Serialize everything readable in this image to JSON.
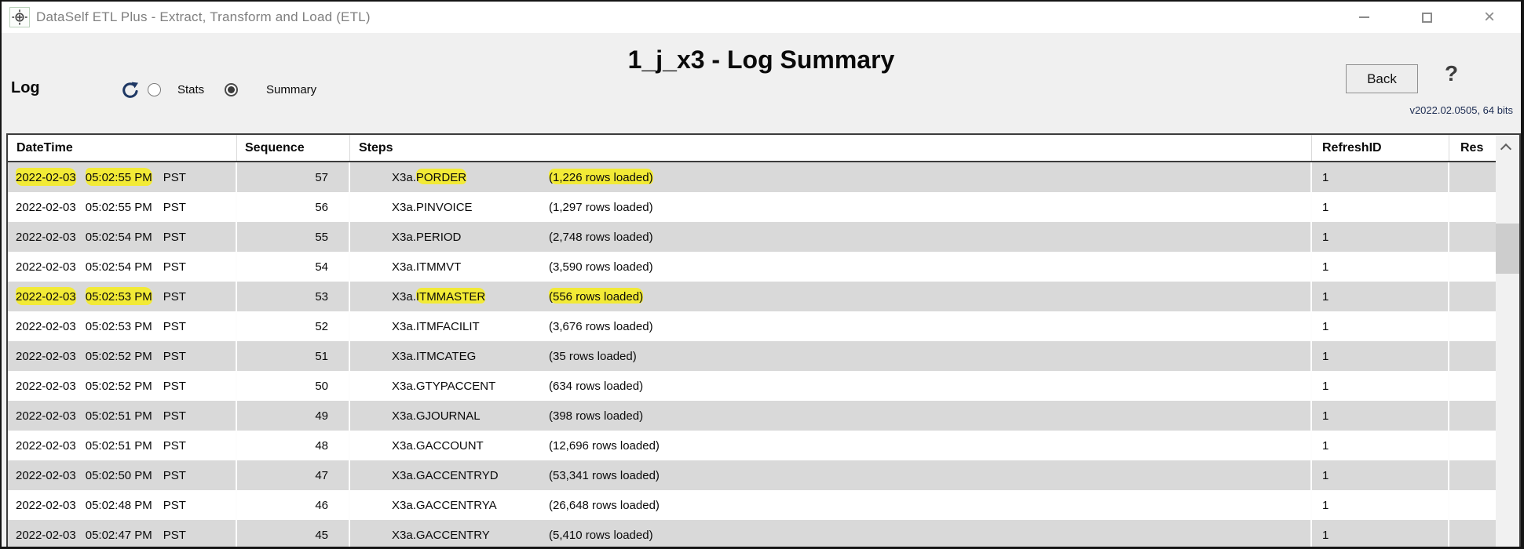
{
  "window": {
    "title": "DataSelf ETL Plus - Extract, Transform and Load (ETL)",
    "controls": {
      "minimize": "minimize",
      "maximize": "maximize",
      "close": "×"
    }
  },
  "header": {
    "page_title": "1_j_x3 - Log Summary",
    "back_label": "Back",
    "help_label": "?",
    "version": "v2022.02.0505, 64 bits"
  },
  "toolbar": {
    "log_label": "Log",
    "refresh_icon": "refresh",
    "radios": [
      {
        "label": "Stats",
        "selected": false
      },
      {
        "label": "Summary",
        "selected": true
      }
    ]
  },
  "colors": {
    "highlight": "#f2ea36",
    "row_alt": "#d9d9d9",
    "refresh_icon": "#1f3864",
    "table_border": "#3c3c3c"
  },
  "table": {
    "columns": [
      "DateTime",
      "Sequence",
      "Steps",
      "RefreshID",
      "Res"
    ],
    "rows": [
      {
        "date": "2022-02-03",
        "time": "05:02:55 PM",
        "tz": "PST",
        "sequence": "57",
        "step_prefix": "X3a.",
        "step_name": "PORDER",
        "rows_loaded": "(1,226 rows loaded)",
        "refresh_id": "1",
        "res": "",
        "highlights": {
          "datetime": true,
          "step": true,
          "rows_loaded": true
        }
      },
      {
        "date": "2022-02-03",
        "time": "05:02:55 PM",
        "tz": "PST",
        "sequence": "56",
        "step_prefix": "X3a.",
        "step_name": "PINVOICE",
        "rows_loaded": "(1,297 rows loaded)",
        "refresh_id": "1",
        "res": "",
        "highlights": {
          "datetime": false,
          "step": false,
          "rows_loaded": false
        }
      },
      {
        "date": "2022-02-03",
        "time": "05:02:54 PM",
        "tz": "PST",
        "sequence": "55",
        "step_prefix": "X3a.",
        "step_name": "PERIOD",
        "rows_loaded": "(2,748 rows loaded)",
        "refresh_id": "1",
        "res": "",
        "highlights": {
          "datetime": false,
          "step": false,
          "rows_loaded": false
        }
      },
      {
        "date": "2022-02-03",
        "time": "05:02:54 PM",
        "tz": "PST",
        "sequence": "54",
        "step_prefix": "X3a.",
        "step_name": "ITMMVT",
        "rows_loaded": "(3,590 rows loaded)",
        "refresh_id": "1",
        "res": "",
        "highlights": {
          "datetime": false,
          "step": false,
          "rows_loaded": false
        }
      },
      {
        "date": "2022-02-03",
        "time": "05:02:53 PM",
        "tz": "PST",
        "sequence": "53",
        "step_prefix": "X3a.",
        "step_name": "ITMMASTER",
        "rows_loaded": "(556 rows loaded)",
        "refresh_id": "1",
        "res": "",
        "highlights": {
          "datetime": true,
          "step": true,
          "rows_loaded": true
        }
      },
      {
        "date": "2022-02-03",
        "time": "05:02:53 PM",
        "tz": "PST",
        "sequence": "52",
        "step_prefix": "X3a.",
        "step_name": "ITMFACILIT",
        "rows_loaded": "(3,676 rows loaded)",
        "refresh_id": "1",
        "res": "",
        "highlights": {
          "datetime": false,
          "step": false,
          "rows_loaded": false
        }
      },
      {
        "date": "2022-02-03",
        "time": "05:02:52 PM",
        "tz": "PST",
        "sequence": "51",
        "step_prefix": "X3a.",
        "step_name": "ITMCATEG",
        "rows_loaded": "(35 rows loaded)",
        "refresh_id": "1",
        "res": "",
        "highlights": {
          "datetime": false,
          "step": false,
          "rows_loaded": false
        }
      },
      {
        "date": "2022-02-03",
        "time": "05:02:52 PM",
        "tz": "PST",
        "sequence": "50",
        "step_prefix": "X3a.",
        "step_name": "GTYPACCENT",
        "rows_loaded": "(634 rows loaded)",
        "refresh_id": "1",
        "res": "",
        "highlights": {
          "datetime": false,
          "step": false,
          "rows_loaded": false
        }
      },
      {
        "date": "2022-02-03",
        "time": "05:02:51 PM",
        "tz": "PST",
        "sequence": "49",
        "step_prefix": "X3a.",
        "step_name": "GJOURNAL",
        "rows_loaded": "(398 rows loaded)",
        "refresh_id": "1",
        "res": "",
        "highlights": {
          "datetime": false,
          "step": false,
          "rows_loaded": false
        }
      },
      {
        "date": "2022-02-03",
        "time": "05:02:51 PM",
        "tz": "PST",
        "sequence": "48",
        "step_prefix": "X3a.",
        "step_name": "GACCOUNT",
        "rows_loaded": "(12,696 rows loaded)",
        "refresh_id": "1",
        "res": "",
        "highlights": {
          "datetime": false,
          "step": false,
          "rows_loaded": false
        }
      },
      {
        "date": "2022-02-03",
        "time": "05:02:50 PM",
        "tz": "PST",
        "sequence": "47",
        "step_prefix": "X3a.",
        "step_name": "GACCENTRYD",
        "rows_loaded": "(53,341 rows loaded)",
        "refresh_id": "1",
        "res": "",
        "highlights": {
          "datetime": false,
          "step": false,
          "rows_loaded": false
        }
      },
      {
        "date": "2022-02-03",
        "time": "05:02:48 PM",
        "tz": "PST",
        "sequence": "46",
        "step_prefix": "X3a.",
        "step_name": "GACCENTRYA",
        "rows_loaded": "(26,648 rows loaded)",
        "refresh_id": "1",
        "res": "",
        "highlights": {
          "datetime": false,
          "step": false,
          "rows_loaded": false
        }
      },
      {
        "date": "2022-02-03",
        "time": "05:02:47 PM",
        "tz": "PST",
        "sequence": "45",
        "step_prefix": "X3a.",
        "step_name": "GACCENTRY",
        "rows_loaded": "(5,410 rows loaded)",
        "refresh_id": "1",
        "res": "",
        "highlights": {
          "datetime": false,
          "step": false,
          "rows_loaded": false
        }
      }
    ]
  }
}
